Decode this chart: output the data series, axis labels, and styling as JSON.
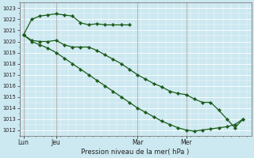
{
  "title": "Pression niveau de la mer( hPa )",
  "bg_color": "#cce8f0",
  "grid_color": "#ffffff",
  "line_color": "#1a5c1a",
  "ylim": [
    1011.5,
    1023.5
  ],
  "yticks": [
    1012,
    1013,
    1014,
    1015,
    1016,
    1017,
    1018,
    1019,
    1020,
    1021,
    1022,
    1023
  ],
  "xtick_labels": [
    "Lun",
    "Jeu",
    "Mar",
    "Mer"
  ],
  "xtick_positions": [
    0,
    8,
    28,
    40
  ],
  "vline_positions": [
    0,
    8,
    28,
    40
  ],
  "xlim": [
    -1,
    56
  ],
  "series_upper_x": [
    0,
    2,
    4,
    6,
    8,
    10,
    12,
    14,
    16,
    18,
    20,
    22,
    24,
    26
  ],
  "series_upper_y": [
    1020.6,
    1022.0,
    1022.3,
    1022.4,
    1022.5,
    1022.4,
    1022.3,
    1021.7,
    1021.5,
    1021.6,
    1021.5,
    1021.5,
    1021.5,
    1021.5
  ],
  "series_mid_x": [
    0,
    2,
    4,
    6,
    8,
    10,
    12,
    14,
    16,
    18,
    20,
    22,
    24,
    26,
    28,
    30,
    32,
    34,
    36,
    38,
    40,
    42,
    44,
    46,
    48,
    50,
    52,
    54
  ],
  "series_mid_y": [
    1020.6,
    1020.1,
    1020.0,
    1020.0,
    1020.1,
    1019.7,
    1019.5,
    1019.5,
    1019.5,
    1019.2,
    1018.8,
    1018.4,
    1018.0,
    1017.5,
    1017.0,
    1016.6,
    1016.2,
    1015.9,
    1015.5,
    1015.3,
    1015.2,
    1014.8,
    1014.5,
    1014.5,
    1013.8,
    1013.0,
    1012.2,
    1013.0
  ],
  "series_low_x": [
    0,
    2,
    4,
    6,
    8,
    10,
    12,
    14,
    16,
    18,
    20,
    22,
    24,
    26,
    28,
    30,
    32,
    34,
    36,
    38,
    40,
    42,
    44,
    46,
    48,
    50,
    52,
    54
  ],
  "series_low_y": [
    1020.6,
    1020.0,
    1019.7,
    1019.4,
    1019.0,
    1018.5,
    1018.0,
    1017.5,
    1017.0,
    1016.5,
    1016.0,
    1015.5,
    1015.0,
    1014.5,
    1014.0,
    1013.6,
    1013.2,
    1012.8,
    1012.5,
    1012.2,
    1012.0,
    1011.9,
    1012.0,
    1012.1,
    1012.2,
    1012.3,
    1012.5,
    1013.0
  ]
}
